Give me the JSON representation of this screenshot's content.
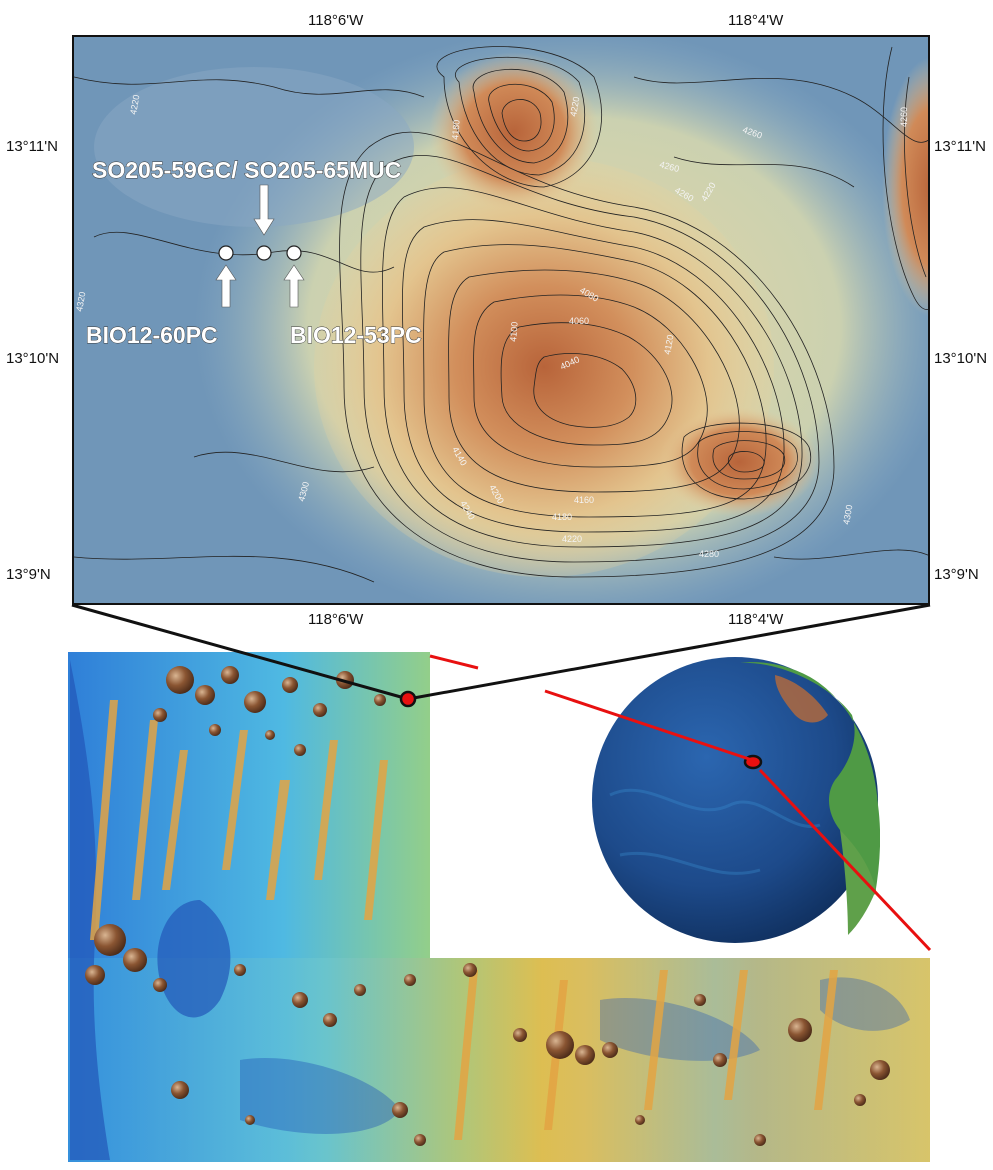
{
  "detail_map": {
    "top_ticks": [
      "118°6'W",
      "118°4'W"
    ],
    "bottom_ticks": [
      "118°6'W",
      "118°4'W"
    ],
    "left_ticks": [
      "13°11'N",
      "13°10'N",
      "13°9'N"
    ],
    "right_ticks": [
      "13°11'N",
      "13°10'N",
      "13°9'N"
    ],
    "stations": {
      "top_label": "SO205-59GC/ SO205-65MUC",
      "left_label": "BIO12-60PC",
      "right_label": "BIO12-53PC"
    },
    "contour_labels": [
      "4220",
      "4320",
      "4300",
      "4260",
      "4260",
      "4220",
      "4260",
      "4180",
      "4220",
      "4100",
      "4080",
      "4060",
      "4040",
      "4120",
      "4140",
      "4240",
      "4160",
      "4180",
      "4220",
      "4200",
      "4280",
      "4300",
      "4260"
    ],
    "colors": {
      "deep": "#6f93b6",
      "mid": "#e8d6a2",
      "shallow": "#c8794a",
      "contour": "#222222"
    }
  },
  "regional_map": {
    "colors": {
      "deep": "#2a66c8",
      "mid": "#53c1e0",
      "high": "#e6b040",
      "nodule": "#7b4a2a"
    }
  },
  "globe": {
    "colors": {
      "ocean": "#1d4a8a",
      "land": "#4fa04a",
      "marker": "#e81010"
    }
  }
}
